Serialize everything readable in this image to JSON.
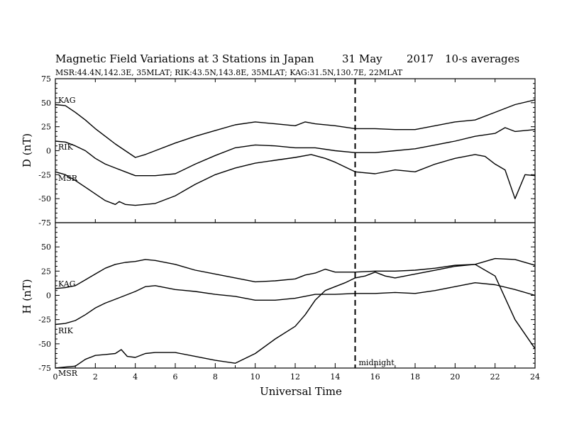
{
  "chart_data": {
    "type": "line",
    "title": "Magnetic Field Variations at 3 Stations in Japan",
    "date": "31 May",
    "year": "2017",
    "averaging": "10-s averages",
    "subtitle": "MSR:44.4N,142.3E, 35MLAT;  RIK:43.5N,143.8E, 35MLAT;  KAG:31.5N,130.7E, 22MLAT",
    "xlabel": "Universal Time",
    "xlim": [
      0,
      24
    ],
    "xticks": [
      0,
      2,
      4,
      6,
      8,
      10,
      12,
      14,
      16,
      18,
      20,
      22,
      24
    ],
    "grid": false,
    "annotation": {
      "label": "midnight",
      "x": 15,
      "style": "dashed vertical line"
    },
    "panels": [
      {
        "name": "D",
        "ylabel": "D (nT)",
        "ylim": [
          -75,
          75
        ],
        "yticks": [
          75,
          50,
          25,
          0,
          -25,
          -50,
          -75
        ],
        "series": [
          {
            "name": "KAG",
            "x": [
              0,
              0.5,
              1,
              1.5,
              2,
              2.5,
              3,
              3.5,
              4,
              4.5,
              5,
              6,
              7,
              8,
              9,
              10,
              11,
              12,
              12.5,
              13,
              14,
              15,
              16,
              17,
              18,
              19,
              20,
              21,
              22,
              23,
              24
            ],
            "y": [
              48,
              47,
              40,
              32,
              23,
              15,
              7,
              0,
              -7,
              -4,
              0,
              8,
              15,
              21,
              27,
              30,
              28,
              26,
              30,
              28,
              26,
              23,
              23,
              22,
              22,
              26,
              30,
              32,
              40,
              48,
              53
            ]
          },
          {
            "name": "RIK",
            "x": [
              0,
              0.5,
              1,
              1.5,
              2,
              2.5,
              3,
              3.5,
              4,
              5,
              6,
              7,
              8,
              9,
              10,
              11,
              12,
              13,
              14,
              15,
              16,
              17,
              18,
              19,
              20,
              21,
              22,
              22.5,
              23,
              24
            ],
            "y": [
              10,
              9,
              5,
              0,
              -8,
              -14,
              -18,
              -22,
              -26,
              -26,
              -24,
              -14,
              -5,
              3,
              6,
              5,
              3,
              3,
              0,
              -2,
              -2,
              0,
              2,
              6,
              10,
              15,
              18,
              24,
              20,
              22
            ]
          },
          {
            "name": "MSR",
            "x": [
              0,
              0.5,
              1,
              1.5,
              2,
              2.5,
              3,
              3.2,
              3.5,
              4,
              5,
              6,
              7,
              8,
              9,
              10,
              11,
              12,
              12.8,
              13.5,
              14,
              15,
              16,
              17,
              18,
              19,
              20,
              21,
              21.5,
              22,
              22.5,
              23,
              23.5,
              24
            ],
            "y": [
              -22,
              -25,
              -31,
              -38,
              -45,
              -52,
              -56,
              -53,
              -56,
              -57,
              -55,
              -47,
              -35,
              -25,
              -18,
              -13,
              -10,
              -7,
              -4,
              -8,
              -12,
              -22,
              -24,
              -20,
              -22,
              -14,
              -8,
              -4,
              -6,
              -14,
              -20,
              -50,
              -25,
              -26
            ]
          }
        ]
      },
      {
        "name": "H",
        "ylabel": "H (nT)",
        "ylim": [
          -75,
          75
        ],
        "yticks": [
          50,
          25,
          0,
          -25,
          -50,
          -75
        ],
        "series": [
          {
            "name": "KAG",
            "x": [
              0,
              0.5,
              1,
              1.5,
              2,
              2.5,
              3,
              3.5,
              4,
              4.5,
              5,
              6,
              7,
              8,
              9,
              10,
              11,
              12,
              12.5,
              13,
              13.5,
              14,
              15,
              16,
              17,
              18,
              19,
              20,
              21,
              22,
              23,
              24
            ],
            "y": [
              7,
              8,
              10,
              16,
              22,
              28,
              32,
              34,
              35,
              37,
              36,
              32,
              26,
              22,
              18,
              14,
              15,
              17,
              21,
              23,
              27,
              24,
              24,
              25,
              25,
              26,
              28,
              31,
              32,
              38,
              37,
              31
            ]
          },
          {
            "name": "RIK",
            "x": [
              0,
              0.5,
              1,
              1.5,
              2,
              2.5,
              3,
              3.5,
              4,
              4.5,
              5,
              6,
              7,
              8,
              9,
              10,
              11,
              12,
              13,
              14,
              15,
              16,
              17,
              18,
              19,
              20,
              21,
              22,
              23,
              24
            ],
            "y": [
              -30,
              -29,
              -26,
              -20,
              -13,
              -8,
              -4,
              0,
              4,
              9,
              10,
              6,
              4,
              1,
              -1,
              -5,
              -5,
              -3,
              1,
              1,
              2,
              2,
              3,
              2,
              5,
              9,
              13,
              11,
              6,
              0
            ]
          },
          {
            "name": "MSR",
            "x": [
              0,
              0.5,
              1,
              1.5,
              2,
              2.5,
              3,
              3.3,
              3.6,
              4,
              4.5,
              5,
              6,
              7,
              8,
              9,
              10,
              11,
              12,
              12.5,
              13,
              13.5,
              14,
              14.5,
              15,
              15.5,
              16,
              16.5,
              17,
              18,
              19,
              20,
              21,
              22,
              23,
              24
            ],
            "y": [
              -75,
              -74,
              -73,
              -66,
              -62,
              -61,
              -60,
              -56,
              -63,
              -64,
              -60,
              -59,
              -59,
              -63,
              -67,
              -70,
              -60,
              -45,
              -32,
              -20,
              -5,
              5,
              9,
              13,
              18,
              20,
              24,
              20,
              18,
              22,
              26,
              30,
              32,
              20,
              -25,
              -55
            ]
          }
        ]
      }
    ]
  }
}
